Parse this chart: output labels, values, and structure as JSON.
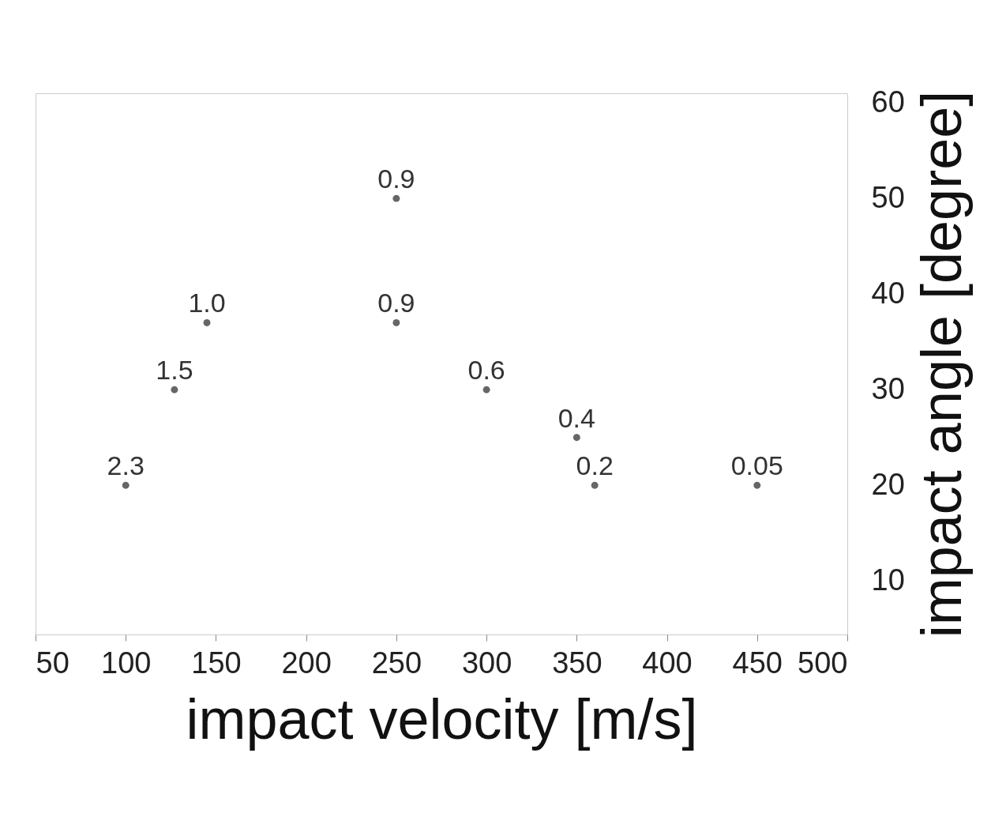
{
  "chart_data": {
    "type": "scatter",
    "xlabel": "impact velocity [m/s]",
    "ylabel": "impact angle [degree]",
    "x": [
      250,
      145,
      250,
      127,
      300,
      350,
      360,
      100,
      450
    ],
    "values": [
      50,
      37,
      37,
      30,
      30,
      25,
      20,
      20,
      20
    ],
    "annotations": [
      {
        "text": "0.9",
        "x": 250,
        "y": 50
      },
      {
        "text": "1.0",
        "x": 145,
        "y": 37
      },
      {
        "text": "0.9",
        "x": 250,
        "y": 37
      },
      {
        "text": "1.5",
        "x": 127,
        "y": 30
      },
      {
        "text": "0.6",
        "x": 300,
        "y": 30
      },
      {
        "text": "0.4",
        "x": 350,
        "y": 25
      },
      {
        "text": "0.2",
        "x": 360,
        "y": 20
      },
      {
        "text": "2.3",
        "x": 100,
        "y": 20
      },
      {
        "text": "0.05",
        "x": 450,
        "y": 20
      }
    ],
    "xlim": [
      50,
      500
    ],
    "xticks": [
      50,
      100,
      150,
      200,
      250,
      300,
      350,
      400,
      450,
      500
    ],
    "ylim": [
      4.4,
      61
    ],
    "yticks": [
      10,
      20,
      30,
      40,
      50,
      60
    ],
    "marker": "circle",
    "grid": false
  }
}
